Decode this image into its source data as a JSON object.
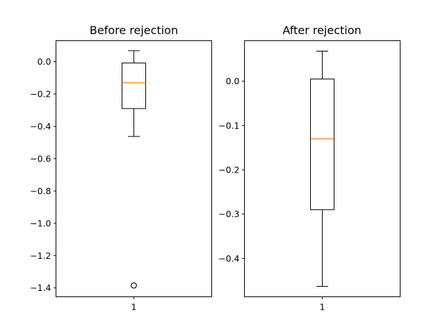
{
  "chart_data": [
    {
      "type": "box",
      "title": "Before rejection",
      "xlabel": "",
      "ylabel": "",
      "categories": [
        "1"
      ],
      "ylim": [
        -1.455,
        0.13
      ],
      "yticks": [
        0.0,
        -0.2,
        -0.4,
        -0.6,
        -0.8,
        -1.0,
        -1.2,
        -1.4
      ],
      "ytick_labels": [
        "0.0",
        "−0.2",
        "−0.4",
        "−0.6",
        "−0.8",
        "−1.0",
        "−1.2",
        "−1.4"
      ],
      "box": {
        "whisker_low": -0.463,
        "q1": -0.29,
        "median": -0.13,
        "q3": -0.008,
        "whisker_high": 0.068
      },
      "fliers": [
        -1.385
      ],
      "median_color": "#ff7f0e",
      "grid": false
    },
    {
      "type": "box",
      "title": "After rejection",
      "xlabel": "",
      "ylabel": "",
      "categories": [
        "1"
      ],
      "ylim": [
        -0.48658,
        0.09148
      ],
      "yticks": [
        0.0,
        -0.1,
        -0.2,
        -0.3,
        -0.4
      ],
      "ytick_labels": [
        "0.0",
        "−0.1",
        "−0.2",
        "−0.3",
        "−0.4"
      ],
      "box": {
        "whisker_low": -0.463,
        "q1": -0.29,
        "median": -0.13,
        "q3": 0.005,
        "whisker_high": 0.068
      },
      "fliers": [],
      "median_color": "#ff7f0e",
      "grid": false
    }
  ]
}
